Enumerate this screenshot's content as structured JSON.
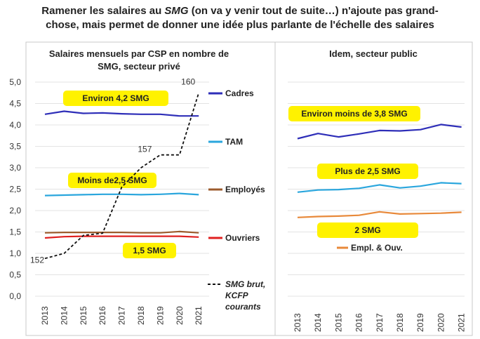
{
  "title": "Ramener les salaires au SMG (on va y venir tout de suite…) n'ajoute pas grand-chose, mais permet de donner une idée plus parlante de l'échelle des salaires",
  "title_line1_a": "Ramener les salaires au ",
  "title_line1_b": "SMG",
  "title_line1_c": " (on va y venir tout de suite…) n'ajoute pas grand-",
  "title_line2": "chose, mais permet de donner une idée plus parlante de l'échelle des salaires",
  "colors": {
    "cadres": "#2e2eb8",
    "tam": "#2aa6dd",
    "employes": "#9c5b2c",
    "ouvriers": "#e02020",
    "smg": "#111111",
    "public_empl_ouv": "#e8893a",
    "annotation_bg": "#fff200"
  },
  "chart_data": [
    {
      "type": "line",
      "title_line1": "Salaires mensuels par CSP en nombre de",
      "title_line2": "SMG, secteur privé",
      "x": [
        "2013",
        "2014",
        "2015",
        "2016",
        "2017",
        "2018",
        "2019",
        "2020",
        "2021"
      ],
      "ylim": [
        0,
        5
      ],
      "yticks": [
        "0,0",
        "0,5",
        "1,0",
        "1,5",
        "2,0",
        "2,5",
        "3,0",
        "3,5",
        "4,0",
        "4,5",
        "5,0"
      ],
      "grid": true,
      "series": [
        {
          "name": "Cadres",
          "values": [
            4.25,
            4.32,
            4.27,
            4.28,
            4.26,
            4.25,
            4.25,
            4.21,
            4.21
          ]
        },
        {
          "name": "TAM",
          "values": [
            2.35,
            2.36,
            2.37,
            2.38,
            2.38,
            2.37,
            2.38,
            2.4,
            2.37
          ]
        },
        {
          "name": "Employés",
          "values": [
            1.48,
            1.49,
            1.49,
            1.49,
            1.49,
            1.48,
            1.48,
            1.51,
            1.48
          ]
        },
        {
          "name": "Ouvriers",
          "values": [
            1.36,
            1.39,
            1.4,
            1.4,
            1.4,
            1.4,
            1.4,
            1.4,
            1.38
          ]
        }
      ],
      "smg_series": {
        "name": "SMG brut, KCFP courants",
        "label_lines": [
          "SMG brut,",
          "KCFP",
          "courants"
        ],
        "values": [
          152,
          154,
          155,
          155,
          157,
          157,
          157,
          157,
          160
        ],
        "display_y": [
          0.88,
          1.0,
          1.42,
          1.47,
          2.55,
          3.0,
          3.3,
          3.3,
          4.75
        ],
        "point_labels": [
          {
            "index": 0,
            "text": "152"
          },
          {
            "index": 6,
            "text": "157"
          },
          {
            "index": 8,
            "text": "160"
          }
        ]
      },
      "annotations": [
        "Environ 4,2 SMG",
        "Moins de2,5  SMG",
        "1,5 SMG"
      ]
    },
    {
      "type": "line",
      "title": "Idem, secteur public",
      "x": [
        "2013",
        "2014",
        "2015",
        "2016",
        "2017",
        "2018",
        "2019",
        "2020",
        "2021"
      ],
      "ylim": [
        0,
        5
      ],
      "grid": true,
      "series": [
        {
          "name": "Cadres",
          "values": [
            3.68,
            3.8,
            3.72,
            3.79,
            3.87,
            3.86,
            3.89,
            4.01,
            3.95
          ]
        },
        {
          "name": "TAM",
          "values": [
            2.43,
            2.48,
            2.49,
            2.52,
            2.6,
            2.53,
            2.57,
            2.65,
            2.63
          ]
        },
        {
          "name": "Empl. & Ouv.",
          "values": [
            1.84,
            1.86,
            1.87,
            1.89,
            1.97,
            1.92,
            1.93,
            1.94,
            1.96
          ]
        }
      ],
      "annotations": [
        "Environ  moins de 3,8 SMG",
        "Plus de 2,5 SMG",
        "2 SMG"
      ]
    }
  ]
}
